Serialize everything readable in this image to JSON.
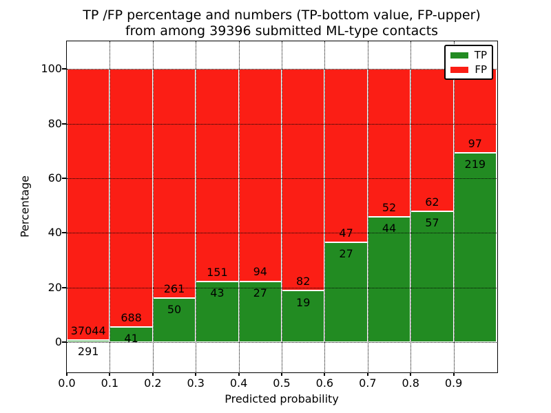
{
  "chart_data": {
    "type": "bar",
    "stacked": true,
    "normalized": "each bin stacked to 100 percent",
    "title": "TP /FP percentage and numbers (TP-bottom value, FP-upper)\nfrom among 39396 submitted ML-type contacts",
    "title_lines": [
      "TP /FP percentage and numbers (TP-bottom value, FP-upper)",
      "from among 39396 submitted ML-type contacts"
    ],
    "total_submitted": 39396,
    "xlabel": "Predicted probability",
    "ylabel": "Percentage",
    "xlim": [
      0.0,
      1.0
    ],
    "ylim": [
      -10.8,
      110.1
    ],
    "xtick_labels": [
      "0.0",
      "0.1",
      "0.2",
      "0.3",
      "0.4",
      "0.5",
      "0.6",
      "0.7",
      "0.8",
      "0.9"
    ],
    "ytick_values": [
      0,
      20,
      40,
      60,
      80,
      100
    ],
    "grid": "dotted black lines drawn above bars",
    "colors": {
      "tp": "#228b22",
      "fp": "#fb1e15"
    },
    "legend": {
      "position": "upper-right",
      "entries": [
        {
          "label": "TP",
          "color": "#228b22"
        },
        {
          "label": "FP",
          "color": "#fb1e15"
        }
      ]
    },
    "bins": [
      {
        "x0": 0.0,
        "x1": 0.1,
        "tp": 291,
        "fp": 37044,
        "tp_percent": 0.78
      },
      {
        "x0": 0.1,
        "x1": 0.2,
        "tp": 41,
        "fp": 688,
        "tp_percent": 5.62
      },
      {
        "x0": 0.2,
        "x1": 0.3,
        "tp": 50,
        "fp": 261,
        "tp_percent": 16.08
      },
      {
        "x0": 0.3,
        "x1": 0.4,
        "tp": 43,
        "fp": 151,
        "tp_percent": 22.16
      },
      {
        "x0": 0.4,
        "x1": 0.5,
        "tp": 27,
        "fp": 94,
        "tp_percent": 22.31
      },
      {
        "x0": 0.5,
        "x1": 0.6,
        "tp": 19,
        "fp": 82,
        "tp_percent": 18.81
      },
      {
        "x0": 0.6,
        "x1": 0.7,
        "tp": 27,
        "fp": 47,
        "tp_percent": 36.49
      },
      {
        "x0": 0.7,
        "x1": 0.8,
        "tp": 44,
        "fp": 52,
        "tp_percent": 45.83
      },
      {
        "x0": 0.8,
        "x1": 0.9,
        "tp": 57,
        "fp": 62,
        "tp_percent": 47.9
      },
      {
        "x0": 0.9,
        "x1": 1.0,
        "tp": 219,
        "fp": 97,
        "tp_percent": 69.3
      }
    ]
  }
}
